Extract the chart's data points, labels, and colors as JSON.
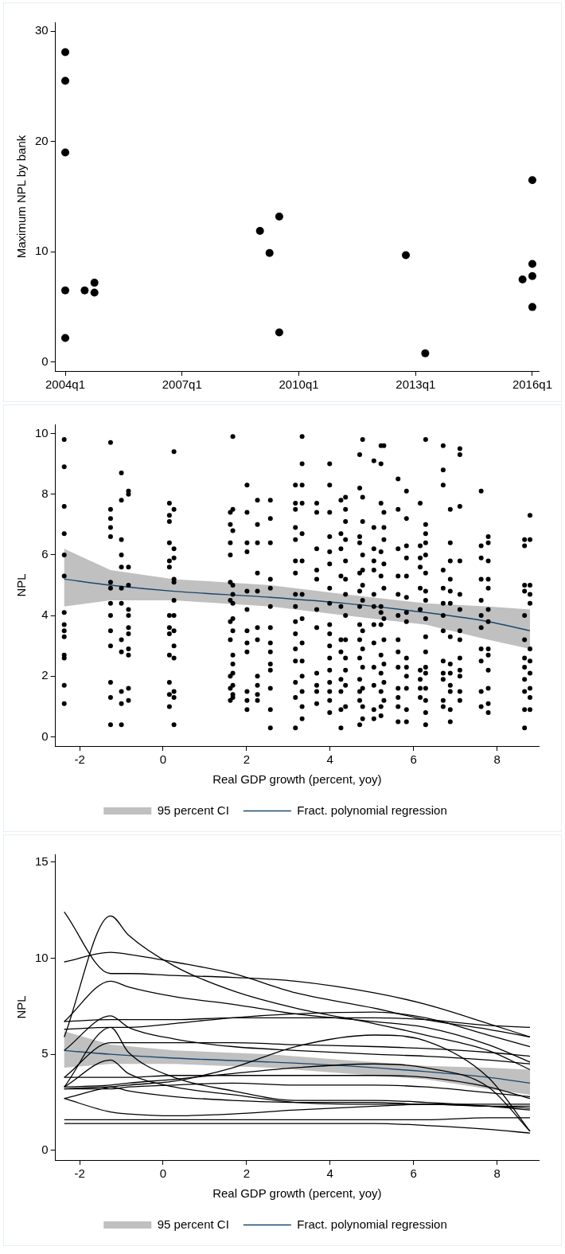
{
  "chart_data": [
    {
      "type": "scatter",
      "ylabel": "Maximum NPL by bank",
      "color": "#000000",
      "marker": "circle",
      "grid": false,
      "x": [
        "2004-01",
        "2004-01",
        "2004-01",
        "2004-01",
        "2004-01",
        "2004-07",
        "2004-10",
        "2004-10",
        "2009-01",
        "2009-04",
        "2009-07",
        "2009-07",
        "2012-10",
        "2013-04",
        "2015-10",
        "2016-01",
        "2016-01",
        "2016-01",
        "2016-01"
      ],
      "values": [
        28.1,
        25.5,
        19.0,
        6.5,
        2.2,
        6.5,
        7.2,
        6.3,
        11.9,
        9.9,
        13.2,
        2.7,
        9.7,
        0.8,
        7.5,
        16.5,
        8.9,
        7.8,
        5.0
      ],
      "xlim": [
        "2003-10",
        "2016-03"
      ],
      "xticks": [
        {
          "value": "2004-01",
          "label": "2004q1"
        },
        {
          "value": "2007-01",
          "label": "2007q1"
        },
        {
          "value": "2010-01",
          "label": "2010q1"
        },
        {
          "value": "2013-01",
          "label": "2013q1"
        },
        {
          "value": "2016-01",
          "label": "2016q1"
        }
      ],
      "ylim": [
        -0.8,
        30.8
      ],
      "yticks": [
        0,
        10,
        20,
        30
      ]
    },
    {
      "type": "scatter",
      "xlabel": "Real GDP growth (percent, yoy)",
      "ylabel": "NPL",
      "grid": false,
      "legend": "bottom",
      "annotations": [
        "95 percent CI"
      ],
      "xlim": [
        -2.58,
        9.0
      ],
      "xticks": [
        -2,
        0,
        2,
        4,
        6,
        8
      ],
      "ylim": [
        -0.3,
        10.3
      ],
      "yticks": [
        0,
        2,
        4,
        6,
        8,
        10
      ],
      "series": [
        {
          "color": "#000000",
          "marker": "circle",
          "x": [
            -2.37,
            -2.37,
            -2.37,
            -2.37,
            -2.37,
            -2.37,
            -2.37,
            -2.37,
            -2.37,
            -2.37,
            -2.37,
            -2.37,
            -2.37,
            -2.37,
            -1.26,
            -1.26,
            -1.26,
            -1.26,
            -1.26,
            -1.26,
            -1.26,
            -1.26,
            -1.26,
            -1.26,
            -1.26,
            -1.26,
            -1.26,
            -1.26,
            -1.0,
            -1.0,
            -1.0,
            -1.0,
            -1.0,
            -1.0,
            -1.0,
            -1.0,
            -1.0,
            -1.0,
            -1.0,
            -1.0,
            -0.83,
            -0.83,
            -0.83,
            -0.83,
            -0.83,
            -0.83,
            -0.83,
            -0.83,
            -0.83,
            -0.83,
            -0.83,
            -0.83,
            0.15,
            0.15,
            0.15,
            0.15,
            0.15,
            0.15,
            0.15,
            0.15,
            0.15,
            0.15,
            0.15,
            0.15,
            0.15,
            0.26,
            0.26,
            0.26,
            0.26,
            0.26,
            0.26,
            0.26,
            0.26,
            0.26,
            0.26,
            0.26,
            0.26,
            0.26,
            0.26,
            1.61,
            1.61,
            1.61,
            1.61,
            1.61,
            1.61,
            1.61,
            1.61,
            1.61,
            1.61,
            1.61,
            1.67,
            1.67,
            1.67,
            1.67,
            1.67,
            1.67,
            1.67,
            1.67,
            1.67,
            1.67,
            1.67,
            1.67,
            1.67,
            1.67,
            2.01,
            2.01,
            2.01,
            2.01,
            2.01,
            2.01,
            2.01,
            2.01,
            2.01,
            2.01,
            2.01,
            2.01,
            2.26,
            2.26,
            2.26,
            2.26,
            2.26,
            2.26,
            2.26,
            2.26,
            2.26,
            2.26,
            2.26,
            2.57,
            2.57,
            2.57,
            2.57,
            2.57,
            2.57,
            2.57,
            2.57,
            2.57,
            2.57,
            2.57,
            2.57,
            2.57,
            2.57,
            3.17,
            3.17,
            3.17,
            3.17,
            3.17,
            3.17,
            3.17,
            3.17,
            3.17,
            3.17,
            3.17,
            3.17,
            3.17,
            3.17,
            3.17,
            3.17,
            3.33,
            3.33,
            3.33,
            3.33,
            3.33,
            3.33,
            3.33,
            3.33,
            3.33,
            3.33,
            3.33,
            3.33,
            3.33,
            3.33,
            3.68,
            3.68,
            3.68,
            3.68,
            3.68,
            3.68,
            3.68,
            3.68,
            3.68,
            3.68,
            3.68,
            3.99,
            3.99,
            3.99,
            3.99,
            3.99,
            3.99,
            3.99,
            3.99,
            3.99,
            3.99,
            3.99,
            3.99,
            3.99,
            3.99,
            3.99,
            3.99,
            3.99,
            4.26,
            4.26,
            4.26,
            4.26,
            4.26,
            4.26,
            4.26,
            4.26,
            4.26,
            4.26,
            4.26,
            4.37,
            4.37,
            4.37,
            4.37,
            4.37,
            4.37,
            4.37,
            4.37,
            4.37,
            4.37,
            4.37,
            4.37,
            4.37,
            4.71,
            4.71,
            4.71,
            4.71,
            4.71,
            4.71,
            4.71,
            4.71,
            4.71,
            4.71,
            4.71,
            4.71,
            4.71,
            4.71,
            4.78,
            4.78,
            4.78,
            4.78,
            4.78,
            4.78,
            4.78,
            4.78,
            4.78,
            4.78,
            4.78,
            4.78,
            4.78,
            5.05,
            5.05,
            5.05,
            5.05,
            5.05,
            5.05,
            5.05,
            5.05,
            5.05,
            5.05,
            5.05,
            5.05,
            5.05,
            5.22,
            5.22,
            5.22,
            5.22,
            5.22,
            5.22,
            5.22,
            5.22,
            5.22,
            5.22,
            5.22,
            5.22,
            5.22,
            5.29,
            5.29,
            5.29,
            5.29,
            5.29,
            5.29,
            5.29,
            5.29,
            5.29,
            5.29,
            5.29,
            5.63,
            5.63,
            5.63,
            5.63,
            5.63,
            5.63,
            5.63,
            5.63,
            5.63,
            5.63,
            5.63,
            5.63,
            5.63,
            5.83,
            5.83,
            5.83,
            5.83,
            5.83,
            5.83,
            5.83,
            5.83,
            5.83,
            5.83,
            5.83,
            5.83,
            5.83,
            5.83,
            6.16,
            6.16,
            6.16,
            6.16,
            6.16,
            6.16,
            6.16,
            6.16,
            6.16,
            6.16,
            6.29,
            6.29,
            6.29,
            6.29,
            6.29,
            6.29,
            6.29,
            6.29,
            6.29,
            6.29,
            6.29,
            6.29,
            6.29,
            6.29,
            6.29,
            6.29,
            6.29,
            6.71,
            6.71,
            6.71,
            6.71,
            6.71,
            6.71,
            6.71,
            6.71,
            6.71,
            6.71,
            6.71,
            6.71,
            6.71,
            6.88,
            6.88,
            6.88,
            6.88,
            6.88,
            6.88,
            6.88,
            6.88,
            6.88,
            6.88,
            6.88,
            6.88,
            6.88,
            7.11,
            7.11,
            7.11,
            7.11,
            7.11,
            7.11,
            7.11,
            7.11,
            7.11,
            7.11,
            7.11,
            7.11,
            7.11,
            7.62,
            7.62,
            7.62,
            7.62,
            7.62,
            7.62,
            7.62,
            7.62,
            7.62,
            7.62,
            7.62,
            7.79,
            7.79,
            7.79,
            7.79,
            7.79,
            7.79,
            7.79,
            7.79,
            7.79,
            7.79,
            7.79,
            7.79,
            7.79,
            8.66,
            8.66,
            8.66,
            8.66,
            8.66,
            8.66,
            8.66,
            8.66,
            8.66,
            8.66,
            8.66,
            8.66,
            8.79,
            8.79,
            8.79,
            8.79,
            8.79,
            8.79,
            8.79,
            8.79,
            8.79,
            8.79,
            8.79
          ],
          "values": [
            9.8,
            8.9,
            7.6,
            6.7,
            6.0,
            5.3,
            4.1,
            3.7,
            3.5,
            3.3,
            2.7,
            2.6,
            1.7,
            1.1,
            9.7,
            7.5,
            7.2,
            6.9,
            6.6,
            5.1,
            4.9,
            4.4,
            4.0,
            3.5,
            3.0,
            1.8,
            1.3,
            0.4,
            8.7,
            7.8,
            6.5,
            6.0,
            5.6,
            4.9,
            4.4,
            3.2,
            2.8,
            1.5,
            1.1,
            0.4,
            8.1,
            8.0,
            5.6,
            5.0,
            4.2,
            4.0,
            3.6,
            3.4,
            2.9,
            2.7,
            1.6,
            1.2,
            7.7,
            7.3,
            7.1,
            6.4,
            5.8,
            5.6,
            4.0,
            3.6,
            3.4,
            2.7,
            1.8,
            1.4,
            1.0,
            9.4,
            7.5,
            6.2,
            5.9,
            5.2,
            5.1,
            4.5,
            4.0,
            3.5,
            3.0,
            2.6,
            1.5,
            1.3,
            0.4,
            7.4,
            7.0,
            6.4,
            6.0,
            5.1,
            4.5,
            3.8,
            3.2,
            2.0,
            1.6,
            1.2,
            9.9,
            7.5,
            6.8,
            5.0,
            4.7,
            4.4,
            3.9,
            3.5,
            2.7,
            2.4,
            2.1,
            1.7,
            1.4,
            1.3,
            8.3,
            7.4,
            6.4,
            6.1,
            4.8,
            4.2,
            3.5,
            3.1,
            2.8,
            1.5,
            1.2,
            0.9,
            7.8,
            7.0,
            6.4,
            5.4,
            4.8,
            3.6,
            3.2,
            2.0,
            1.7,
            1.4,
            1.2,
            7.8,
            7.2,
            6.4,
            5.2,
            4.9,
            4.3,
            3.6,
            3.1,
            2.8,
            2.4,
            2.2,
            1.6,
            0.9,
            0.3,
            8.3,
            7.7,
            7.5,
            6.9,
            6.5,
            5.8,
            5.4,
            4.7,
            4.3,
            3.8,
            3.4,
            2.9,
            2.5,
            1.8,
            1.3,
            0.3,
            9.9,
            9.0,
            8.3,
            7.7,
            6.7,
            5.8,
            4.7,
            3.9,
            3.1,
            2.5,
            2.0,
            1.5,
            1.0,
            0.6,
            7.7,
            7.4,
            6.2,
            5.5,
            5.2,
            4.2,
            3.6,
            2.1,
            1.7,
            1.5,
            1.1,
            9.0,
            8.3,
            7.4,
            6.6,
            6.1,
            5.7,
            4.9,
            4.4,
            3.7,
            3.4,
            3.0,
            2.6,
            2.2,
            1.8,
            1.5,
            1.2,
            0.8,
            7.8,
            6.7,
            6.2,
            5.3,
            4.3,
            3.2,
            2.8,
            1.9,
            1.5,
            0.9,
            0.3,
            7.9,
            7.5,
            7.1,
            6.5,
            5.8,
            5.2,
            4.7,
            4.0,
            3.2,
            2.6,
            2.2,
            1.7,
            1.0,
            9.3,
            8.2,
            6.6,
            6.4,
            5.4,
            4.8,
            4.3,
            3.7,
            3.2,
            2.6,
            1.9,
            1.5,
            1.2,
            0.4,
            9.8,
            7.9,
            7.1,
            6.0,
            5.5,
            5.0,
            4.5,
            3.5,
            2.9,
            2.3,
            1.6,
            1.0,
            0.6,
            9.1,
            6.9,
            6.2,
            5.8,
            5.5,
            4.7,
            4.3,
            3.7,
            3.1,
            2.3,
            1.7,
            0.9,
            0.6,
            9.6,
            9.0,
            7.7,
            6.1,
            5.3,
            4.3,
            4.1,
            3.7,
            2.7,
            2.1,
            1.5,
            1.0,
            0.7,
            9.6,
            7.4,
            6.9,
            6.5,
            5.7,
            4.9,
            3.9,
            3.2,
            2.4,
            1.8,
            1.2,
            8.5,
            7.5,
            6.2,
            5.3,
            4.7,
            4.0,
            3.2,
            2.8,
            2.3,
            1.6,
            1.3,
            1.0,
            0.5,
            8.1,
            7.2,
            6.3,
            5.9,
            5.3,
            4.6,
            4.1,
            3.8,
            2.6,
            2.3,
            2.0,
            1.6,
            0.9,
            0.5,
            7.7,
            6.3,
            5.9,
            5.6,
            4.9,
            4.2,
            2.2,
            1.9,
            1.6,
            1.3,
            9.8,
            7.0,
            6.7,
            6.4,
            6.0,
            5.4,
            4.8,
            4.5,
            3.9,
            3.3,
            2.8,
            2.3,
            2.1,
            1.6,
            1.2,
            0.8,
            0.4,
            9.6,
            8.8,
            8.3,
            5.5,
            4.9,
            4.4,
            4.0,
            3.5,
            2.5,
            2.1,
            1.9,
            1.2,
            1.0,
            7.5,
            6.4,
            5.8,
            5.2,
            4.8,
            4.4,
            3.3,
            2.4,
            2.1,
            1.7,
            1.5,
            0.9,
            0.5,
            9.5,
            9.3,
            7.6,
            5.8,
            4.7,
            4.2,
            3.5,
            3.2,
            2.6,
            2.2,
            2.0,
            1.5,
            1.2,
            8.1,
            6.3,
            5.9,
            5.2,
            4.5,
            4.0,
            3.6,
            2.9,
            2.5,
            1.5,
            1.0,
            6.6,
            6.4,
            5.8,
            5.2,
            4.9,
            4.2,
            3.8,
            2.9,
            2.7,
            2.2,
            1.6,
            1.1,
            0.8,
            6.5,
            6.3,
            5.0,
            4.8,
            4.0,
            3.2,
            2.6,
            2.3,
            1.9,
            1.5,
            0.9,
            0.3,
            7.3,
            6.5,
            5.0,
            4.7,
            4.4,
            2.9,
            2.5,
            2.1,
            1.6,
            1.3,
            0.9
          ]
        },
        {
          "name": "Fract. polynomial regression",
          "type": "line",
          "color": "#1a476f",
          "x": [
            -2.37,
            -1.26,
            0.26,
            2.57,
            4.37,
            6.29,
            7.79,
            8.79
          ],
          "values": [
            5.2,
            5.0,
            4.8,
            4.6,
            4.4,
            4.1,
            3.8,
            3.5
          ],
          "lower": [
            4.3,
            4.5,
            4.5,
            4.3,
            4.0,
            3.7,
            3.2,
            2.9
          ],
          "upper": [
            6.2,
            5.5,
            5.2,
            5.0,
            4.7,
            4.4,
            4.3,
            4.2
          ]
        }
      ]
    },
    {
      "type": "line",
      "xlabel": "Real GDP growth (percent, yoy)",
      "ylabel": "NPL",
      "grid": false,
      "legend": "bottom",
      "annotations": [
        "95 percent CI"
      ],
      "xlim": [
        -2.58,
        9.0
      ],
      "xticks": [
        -2,
        0,
        2,
        4,
        6,
        8
      ],
      "ylim": [
        -0.5,
        15.4
      ],
      "yticks": [
        0,
        5,
        10,
        15
      ],
      "x": [
        -2.37,
        -1.26,
        -0.83,
        0.26,
        1.67,
        3.17,
        5.05,
        6.29,
        7.79,
        8.79
      ],
      "series": [
        {
          "color": "#000000",
          "values": [
            12.4,
            9.2,
            9.2,
            9.1,
            9.0,
            8.8,
            8.2,
            7.6,
            6.6,
            5.9
          ]
        },
        {
          "color": "#000000",
          "values": [
            5.9,
            12.2,
            11.2,
            9.6,
            8.3,
            7.4,
            6.6,
            6.0,
            5.2,
            4.2
          ]
        },
        {
          "color": "#000000",
          "values": [
            9.8,
            10.3,
            10.2,
            9.8,
            9.2,
            8.2,
            7.4,
            6.8,
            6.3,
            5.9
          ]
        },
        {
          "color": "#000000",
          "values": [
            6.7,
            8.8,
            8.5,
            8.0,
            7.6,
            7.1,
            6.7,
            6.4,
            5.5,
            4.6
          ]
        },
        {
          "color": "#000000",
          "values": [
            6.7,
            6.8,
            6.8,
            6.8,
            6.9,
            6.9,
            6.9,
            6.8,
            6.5,
            6.4
          ]
        },
        {
          "color": "#000000",
          "values": [
            6.3,
            6.4,
            6.4,
            6.6,
            6.9,
            7.1,
            7.2,
            6.9,
            6.0,
            5.4
          ]
        },
        {
          "color": "#000000",
          "values": [
            5.2,
            7.0,
            6.4,
            5.8,
            5.4,
            5.2,
            5.0,
            4.9,
            4.7,
            4.5
          ]
        },
        {
          "color": "#000000",
          "values": [
            3.8,
            5.6,
            5.6,
            5.6,
            5.6,
            5.5,
            5.4,
            5.3,
            5.1,
            4.9
          ]
        },
        {
          "color": "#000000",
          "values": [
            3.3,
            6.4,
            5.1,
            3.8,
            3.1,
            2.6,
            2.6,
            2.5,
            2.3,
            2.1
          ]
        },
        {
          "color": "#000000",
          "values": [
            2.7,
            3.3,
            3.4,
            3.6,
            4.3,
            5.4,
            6.0,
            5.7,
            3.8,
            1.0
          ]
        },
        {
          "color": "#000000",
          "values": [
            3.3,
            4.7,
            4.0,
            3.3,
            2.9,
            2.5,
            2.4,
            2.4,
            2.3,
            2.2
          ]
        },
        {
          "color": "#000000",
          "values": [
            3.8,
            3.8,
            3.8,
            3.9,
            3.9,
            3.9,
            3.9,
            3.8,
            3.3,
            2.7
          ]
        },
        {
          "color": "#000000",
          "values": [
            3.3,
            3.4,
            3.5,
            3.7,
            4.0,
            4.3,
            4.5,
            4.3,
            3.3,
            1.0
          ]
        },
        {
          "color": "#000000",
          "values": [
            3.2,
            3.2,
            3.3,
            3.4,
            3.5,
            3.4,
            3.4,
            3.3,
            3.0,
            2.8
          ]
        },
        {
          "color": "#000000",
          "values": [
            2.7,
            2.0,
            1.9,
            1.8,
            1.9,
            2.1,
            2.3,
            2.4,
            2.3,
            2.3
          ]
        },
        {
          "color": "#000000",
          "values": [
            3.2,
            3.3,
            3.1,
            2.8,
            2.6,
            2.5,
            2.5,
            2.4,
            2.4,
            2.4
          ]
        },
        {
          "color": "#000000",
          "values": [
            1.6,
            1.6,
            1.6,
            1.6,
            1.6,
            1.6,
            1.6,
            1.6,
            1.7,
            1.7
          ]
        },
        {
          "color": "#000000",
          "values": [
            1.4,
            1.4,
            1.4,
            1.4,
            1.4,
            1.4,
            1.4,
            1.3,
            1.1,
            0.9
          ]
        },
        {
          "name": "Fract. polynomial regression",
          "type": "line",
          "color": "#1a476f",
          "x": [
            -2.37,
            -1.26,
            0.26,
            2.57,
            4.37,
            6.29,
            7.79,
            8.79
          ],
          "values": [
            5.2,
            5.0,
            4.8,
            4.6,
            4.4,
            4.1,
            3.8,
            3.5
          ],
          "lower": [
            4.3,
            4.5,
            4.5,
            4.3,
            4.0,
            3.7,
            3.2,
            2.9
          ],
          "upper": [
            6.2,
            5.5,
            5.2,
            5.0,
            4.7,
            4.4,
            4.3,
            4.2
          ]
        }
      ]
    }
  ]
}
